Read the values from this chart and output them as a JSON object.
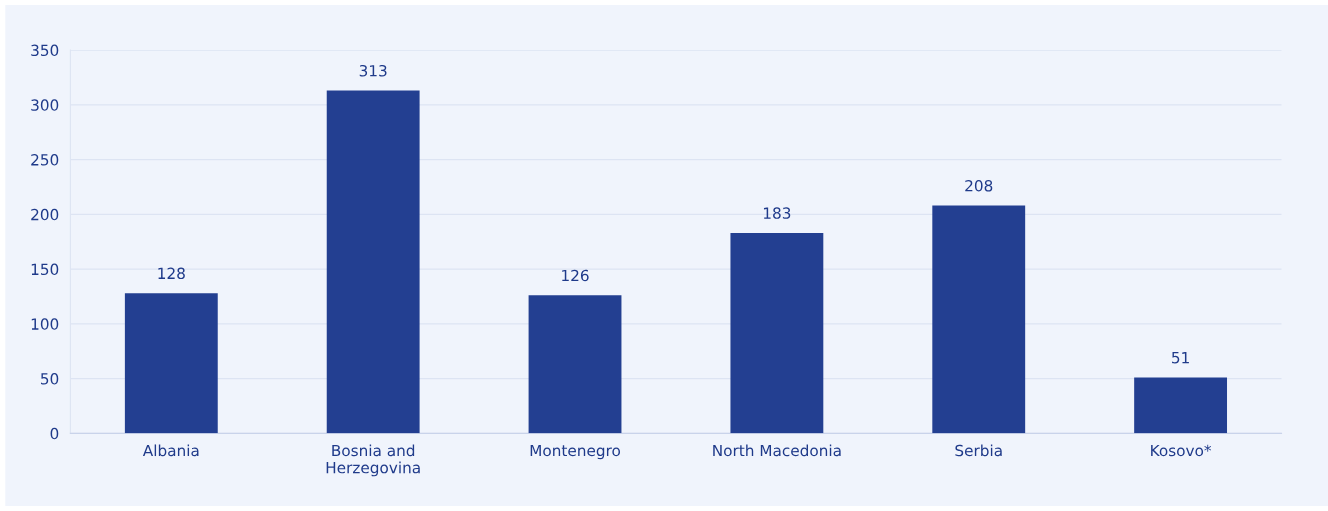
{
  "chart_data": {
    "type": "bar",
    "categories": [
      "Albania",
      "Bosnia and\nHerzegovina",
      "Montenegro",
      "North Macedonia",
      "Serbia",
      "Kosovo*"
    ],
    "values": [
      128,
      313,
      126,
      183,
      208,
      51
    ],
    "color": "#233f91",
    "ylim": [
      0,
      350
    ],
    "yticks": [
      0,
      50,
      100,
      150,
      200,
      250,
      300,
      350
    ],
    "grid": "y",
    "data_labels": true,
    "legend": false
  }
}
